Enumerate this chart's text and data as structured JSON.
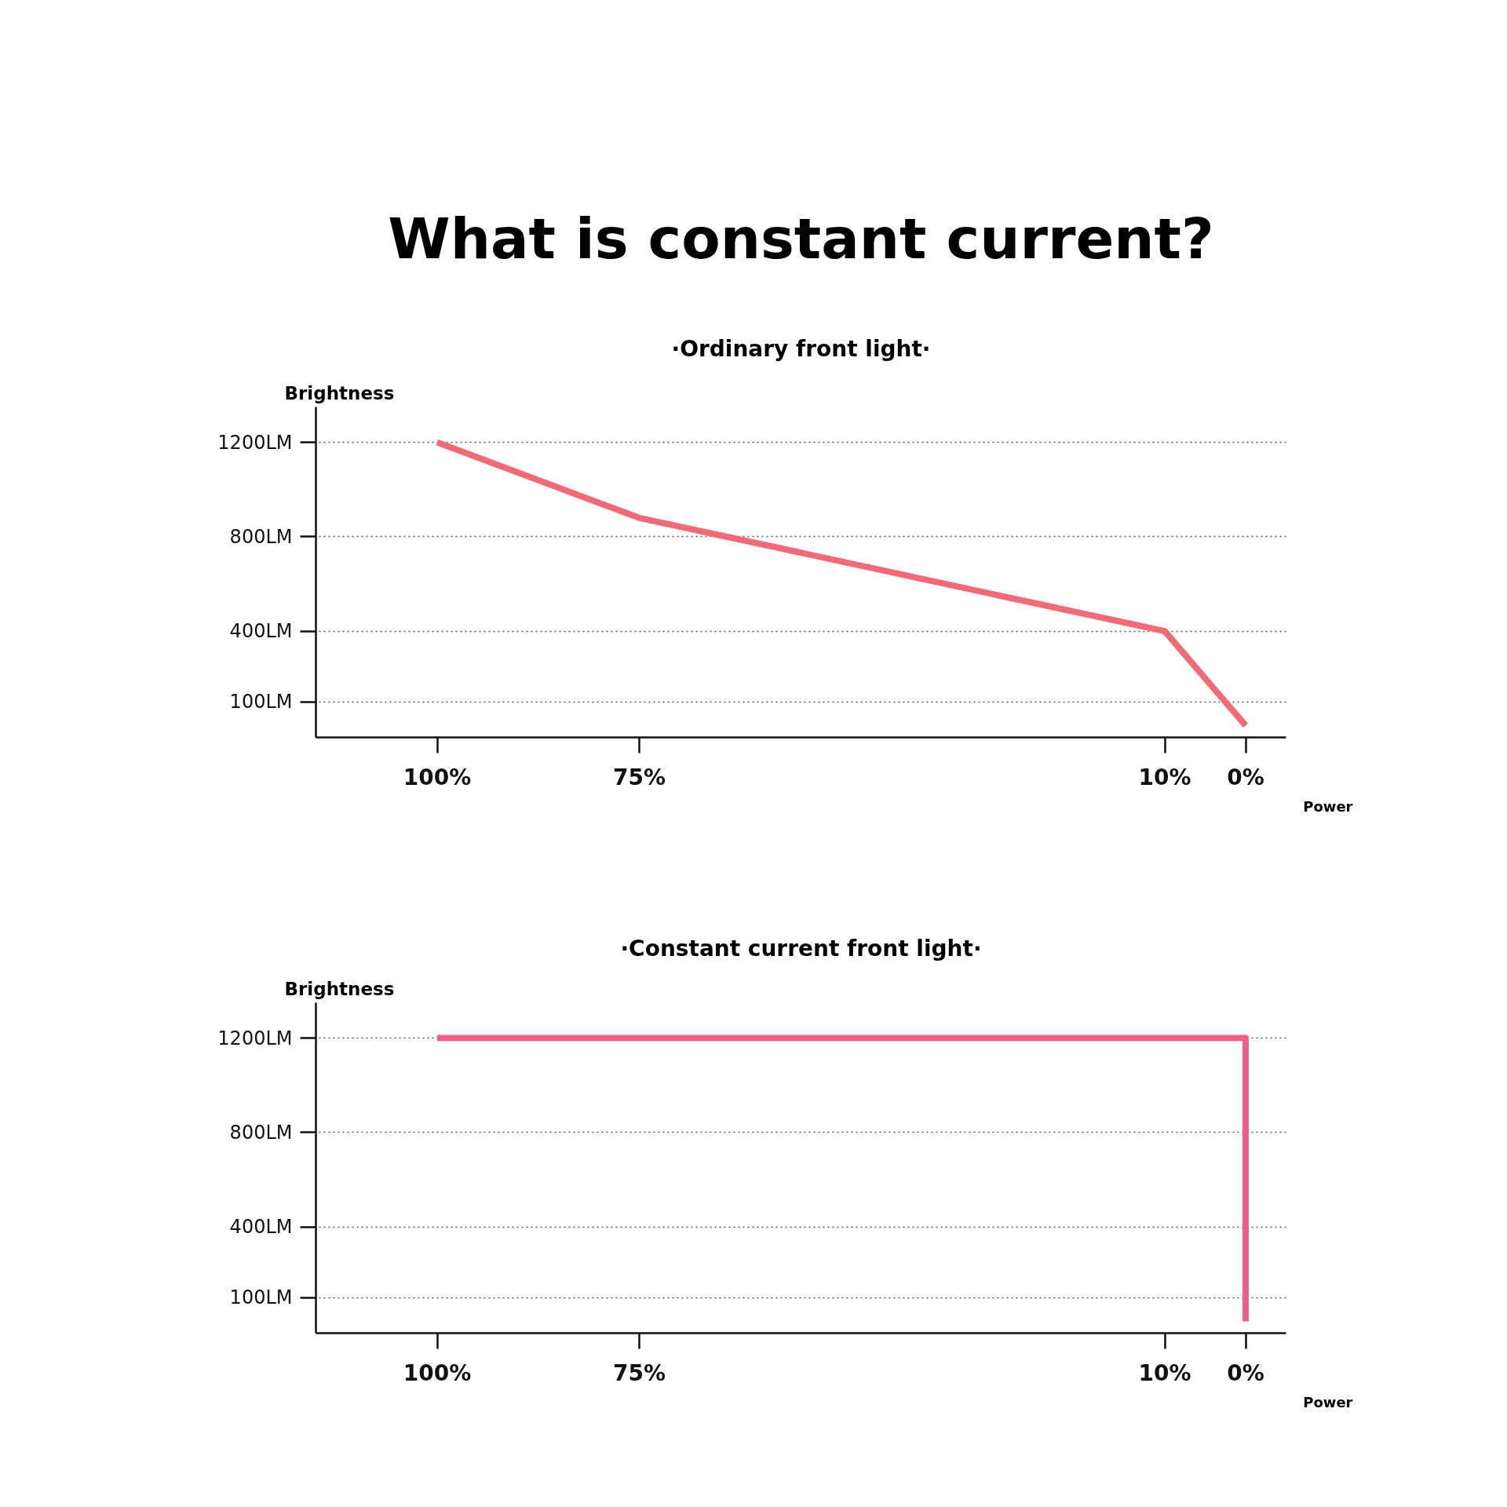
{
  "chart_data": [
    {
      "type": "line",
      "title": "What is constant current?",
      "subtitle": "·Ordinary front light·",
      "xlabel": "Power",
      "ylabel": "Brightness",
      "x": [
        100,
        75,
        10,
        0
      ],
      "series": [
        {
          "color": "#f06b78",
          "values": [
            1200,
            880,
            400,
            0
          ]
        }
      ],
      "xlim": [
        115,
        -5
      ],
      "xticks": [
        {
          "value": 100,
          "label": "100%"
        },
        {
          "value": 75,
          "label": "75%"
        },
        {
          "value": 10,
          "label": "10%"
        },
        {
          "value": 0,
          "label": "0%"
        }
      ],
      "ylim": [
        -50,
        1350
      ],
      "yticks": [
        {
          "value": 100,
          "label": "100LM"
        },
        {
          "value": 400,
          "label": "400LM"
        },
        {
          "value": 800,
          "label": "800LM"
        },
        {
          "value": 1200,
          "label": "1200LM"
        }
      ],
      "grid": "y"
    },
    {
      "type": "line",
      "title": "·Constant current front light·",
      "xlabel": "Power",
      "ylabel": "Brightness",
      "x": [
        100,
        0,
        0
      ],
      "series": [
        {
          "color": "#ee6088",
          "values": [
            1200,
            1200,
            0
          ]
        }
      ],
      "xlim": [
        115,
        -5
      ],
      "xticks": [
        {
          "value": 100,
          "label": "100%"
        },
        {
          "value": 75,
          "label": "75%"
        },
        {
          "value": 10,
          "label": "10%"
        },
        {
          "value": 0,
          "label": "0%"
        }
      ],
      "ylim": [
        -50,
        1350
      ],
      "yticks": [
        {
          "value": 100,
          "label": "100LM"
        },
        {
          "value": 400,
          "label": "400LM"
        },
        {
          "value": 800,
          "label": "800LM"
        },
        {
          "value": 1200,
          "label": "1200LM"
        }
      ],
      "grid": "y"
    }
  ]
}
